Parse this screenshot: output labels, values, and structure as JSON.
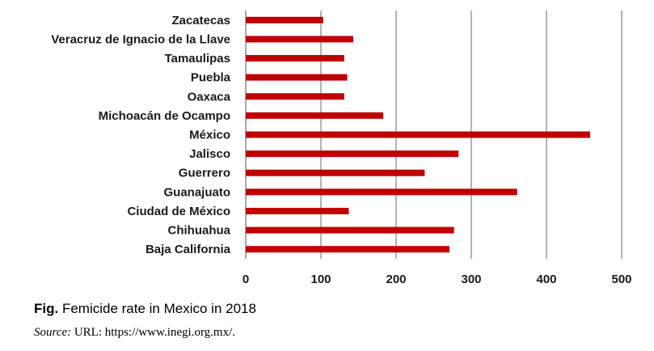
{
  "chart_data": {
    "type": "bar",
    "orientation": "horizontal",
    "categories": [
      "Zacatecas",
      "Veracruz de Ignacio de la Llave",
      "Tamaulipas",
      "Puebla",
      "Oaxaca",
      "Michoacán de Ocampo",
      "México",
      "Jalisco",
      "Guerrero",
      "Guanajuato",
      "Ciudad de México",
      "Chihuahua",
      "Baja California"
    ],
    "values": [
      103,
      143,
      131,
      135,
      131,
      183,
      458,
      283,
      238,
      361,
      137,
      277,
      271
    ],
    "xlim": [
      0,
      500
    ],
    "xticks": [
      "0",
      "100",
      "200",
      "300",
      "400",
      "500"
    ],
    "grid": "vertical",
    "bar_color": "#c00000",
    "legend": "none"
  },
  "caption": {
    "prefix": "Fig.",
    "title": "Femicide rate in Mexico in 2018"
  },
  "source": {
    "label": "Source:",
    "text": " URL: https://www.inegi.org.mx/."
  }
}
